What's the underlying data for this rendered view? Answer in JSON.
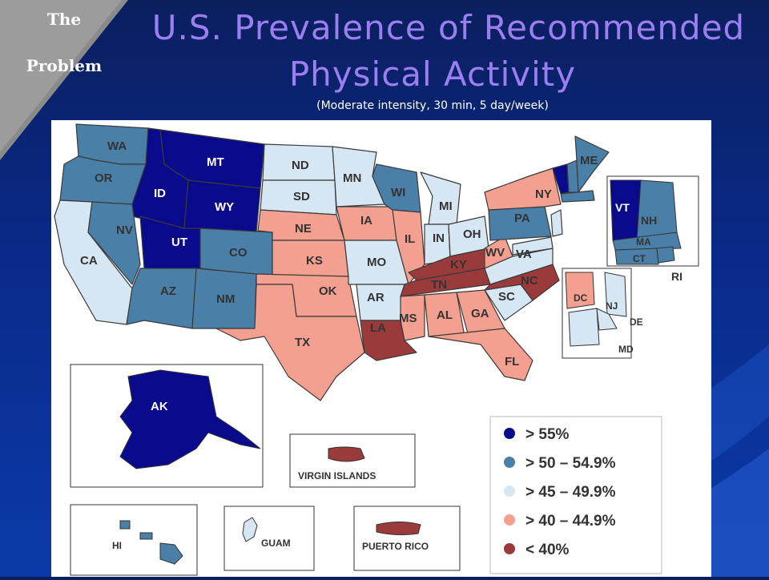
{
  "corner": {
    "line1": "The",
    "line2": "Problem"
  },
  "title": {
    "line1": "U.S. Prevalence of Recommended",
    "line2": "Physical Activity"
  },
  "subtitle": "(Moderate intensity, 30 min, 5 day/week)",
  "colors": {
    "cat1": "#0a0a8c",
    "cat2": "#4a7fa8",
    "cat3": "#d6e6f2",
    "cat4": "#f4a090",
    "cat5": "#9b3a3a",
    "border": "#3a3a3a"
  },
  "legend": [
    {
      "label": "> 55%",
      "color": "cat1"
    },
    {
      "label": "> 50 – 54.9%",
      "color": "cat2"
    },
    {
      "label": "> 45 – 49.9%",
      "color": "cat3"
    },
    {
      "label": "> 40 – 44.9%",
      "color": "cat4"
    },
    {
      "label": "< 40%",
      "color": "cat5"
    }
  ],
  "states": {
    "WA": "cat2",
    "OR": "cat2",
    "CA": "cat3",
    "ID": "cat1",
    "NV": "cat2",
    "UT": "cat1",
    "AZ": "cat2",
    "MT": "cat1",
    "WY": "cat1",
    "CO": "cat2",
    "NM": "cat2",
    "ND": "cat3",
    "SD": "cat3",
    "NE": "cat4",
    "KS": "cat4",
    "OK": "cat4",
    "TX": "cat4",
    "MN": "cat3",
    "IA": "cat4",
    "MO": "cat3",
    "AR": "cat3",
    "LA": "cat5",
    "WI": "cat2",
    "IL": "cat4",
    "MI": "cat3",
    "IN": "cat3",
    "OH": "cat3",
    "KY": "cat5",
    "TN": "cat5",
    "MS": "cat4",
    "AL": "cat4",
    "GA": "cat4",
    "FL": "cat4",
    "SC": "cat3",
    "NC": "cat5",
    "VA": "cat3",
    "WV": "cat4",
    "PA": "cat2",
    "NY": "cat4",
    "VT": "cat1",
    "NH": "cat2",
    "ME": "cat2",
    "MA": "cat2",
    "CT": "cat2",
    "RI": "cat2",
    "NJ": "cat3",
    "DE": "cat3",
    "MD": "cat3",
    "DC": "cat4",
    "AK": "cat1",
    "HI": "cat2"
  },
  "territories": {
    "virgin_islands": "VIRGIN ISLANDS",
    "guam": "GUAM",
    "puerto_rico": "PUERTO RICO",
    "hi": "HI",
    "ak": "AK"
  },
  "territory_colors": {
    "virgin_islands": "cat5",
    "guam": "cat3",
    "puerto_rico": "cat5"
  }
}
